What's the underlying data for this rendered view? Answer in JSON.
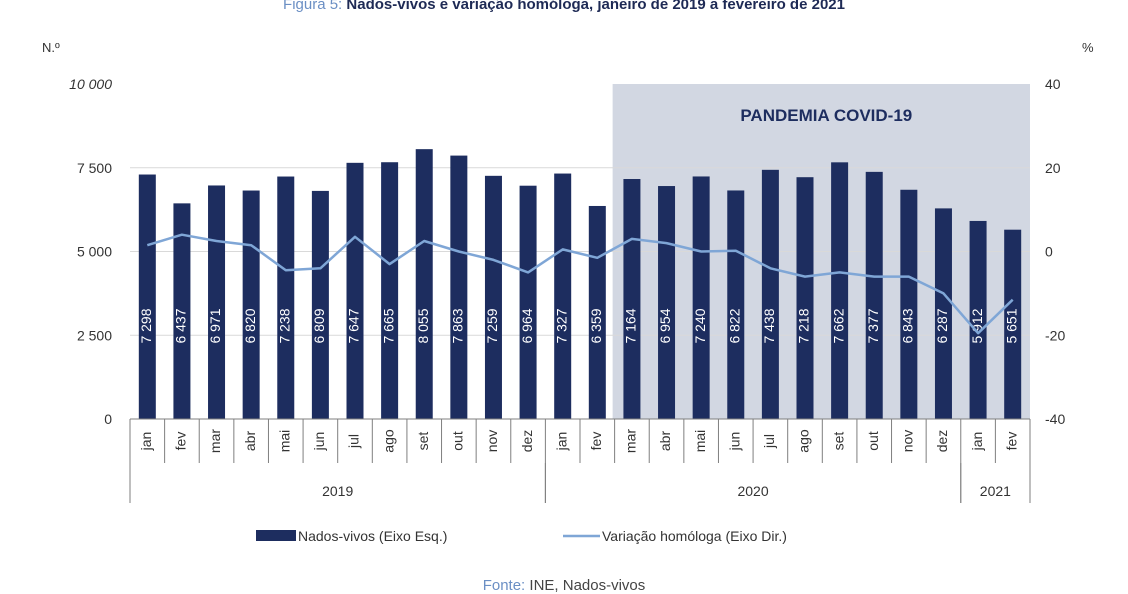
{
  "figure": {
    "title_prefix": "Figura 5:",
    "title_main": "Nados-vivos e variação homóloga, janeiro de 2019 a fevereiro de 2021",
    "source_prefix": "Fonte:",
    "source_main": "INE, Nados-vivos"
  },
  "colors": {
    "bars": "#1d2d5f",
    "line": "#7fa6d6",
    "shade": "#d2d7e2",
    "grid": "#d9d9d9",
    "bar_label": "#ffffff",
    "covid_text": "#1d2d5f"
  },
  "chart_data": {
    "type": "bar",
    "left_unit": "N.º",
    "right_unit": "%",
    "y_ticks": [
      "0",
      "2 500",
      "5 000",
      "7 500",
      "10 000"
    ],
    "y2_ticks": [
      "-40",
      "-20",
      "0",
      "20",
      "40"
    ],
    "ylim": [
      0,
      10000
    ],
    "y2lim": [
      -40,
      40
    ],
    "categories": [
      "jan",
      "fev",
      "mar",
      "abr",
      "mai",
      "jun",
      "jul",
      "ago",
      "set",
      "out",
      "nov",
      "dez",
      "jan",
      "fev",
      "mar",
      "abr",
      "mai",
      "jun",
      "jul",
      "ago",
      "set",
      "out",
      "nov",
      "dez",
      "jan",
      "fev"
    ],
    "years": [
      {
        "label": "2019",
        "start": 0,
        "end": 11
      },
      {
        "label": "2020",
        "start": 12,
        "end": 23
      },
      {
        "label": "2021",
        "start": 24,
        "end": 25
      }
    ],
    "bar_labels": [
      "7 298",
      "6 437",
      "6 971",
      "6 820",
      "7 238",
      "6 809",
      "7 647",
      "7 665",
      "8 055",
      "7 863",
      "7 259",
      "6 964",
      "7 327",
      "6 359",
      "7 164",
      "6 954",
      "7 240",
      "6 822",
      "7 438",
      "7 218",
      "7 662",
      "7 377",
      "6 843",
      "6 287",
      "5 912",
      "5 651"
    ],
    "series": [
      {
        "name": "Nados-vivos (Eixo Esq.)",
        "axis": "left",
        "values": [
          7298,
          6437,
          6971,
          6820,
          7238,
          6809,
          7647,
          7665,
          8055,
          7863,
          7259,
          6964,
          7327,
          6359,
          7164,
          6954,
          7240,
          6822,
          7438,
          7218,
          7662,
          7377,
          6843,
          6287,
          5912,
          5651
        ]
      },
      {
        "name": "Variação homóloga (Eixo Dir.)",
        "axis": "right",
        "values": [
          1.5,
          4,
          2.5,
          1.5,
          -4.5,
          -4,
          3.5,
          -3,
          2.5,
          0,
          -2,
          -5,
          0.5,
          -1.5,
          3,
          2,
          0,
          0.2,
          -4,
          -6,
          -5,
          -6,
          -6,
          -10,
          -19.5,
          -11.5
        ]
      }
    ],
    "annotation": {
      "text": "PANDEMIA COVID-19",
      "start": 14,
      "end": 25
    },
    "grid": true,
    "legend_position": "bottom"
  }
}
